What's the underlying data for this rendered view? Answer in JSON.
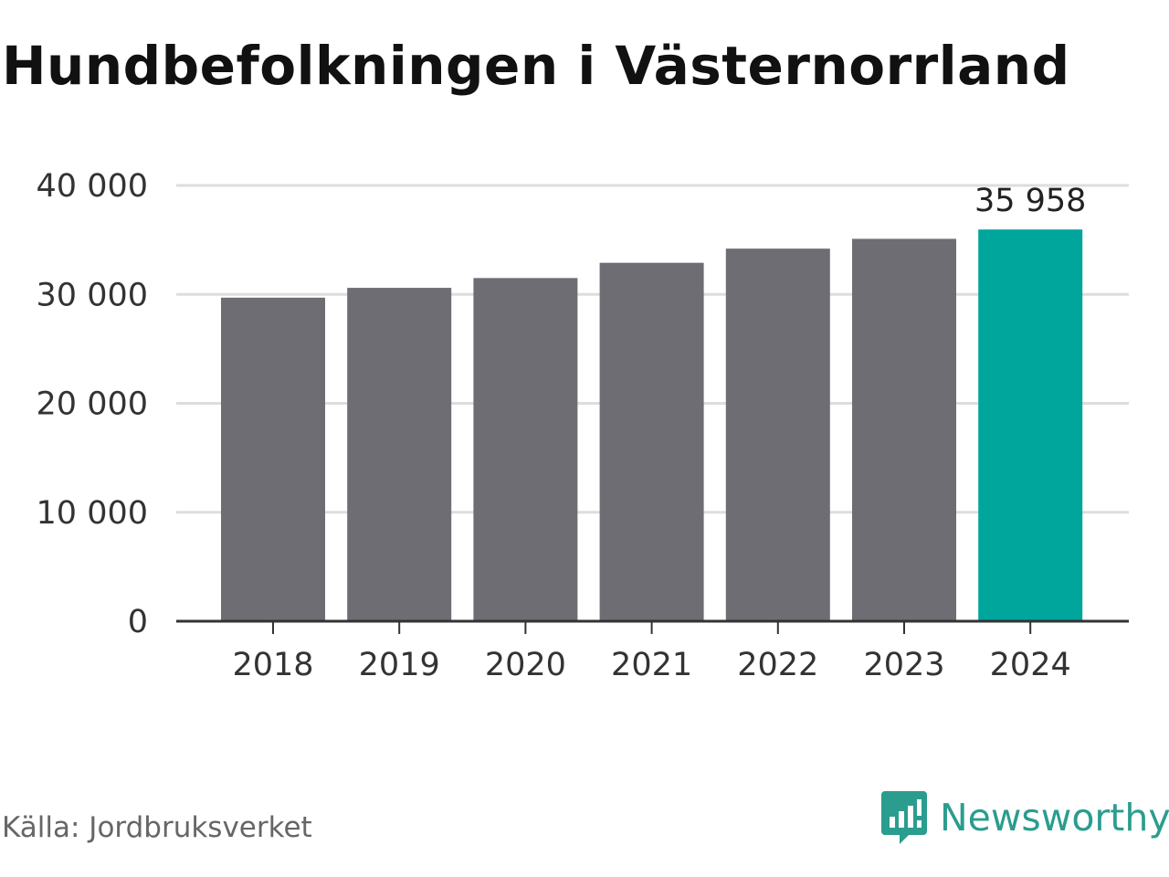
{
  "title": "Hundbefolkningen i Västernorrland",
  "source": "Källa: Jordbruksverket",
  "brand": {
    "name": "Newsworthy",
    "icon": "newsworthy-logo-icon",
    "color": "#2a9d8f"
  },
  "chart_data": {
    "type": "bar",
    "title": "Hundbefolkningen i Västernorrland",
    "categories": [
      "2018",
      "2019",
      "2020",
      "2021",
      "2022",
      "2023",
      "2024"
    ],
    "values": [
      29700,
      30600,
      31500,
      32900,
      34200,
      35100,
      35958
    ],
    "ylim": [
      0,
      40000
    ],
    "yticks": [
      0,
      10000,
      20000,
      30000,
      40000
    ],
    "ytick_labels": [
      "0",
      "10 000",
      "20 000",
      "30 000",
      "40 000"
    ],
    "highlight_index": 6,
    "highlight_label": "35 958",
    "colors": {
      "bar": "#6e6d73",
      "highlight": "#00a69c",
      "grid": "#dddddd",
      "axis": "#333333"
    },
    "grid": true
  }
}
